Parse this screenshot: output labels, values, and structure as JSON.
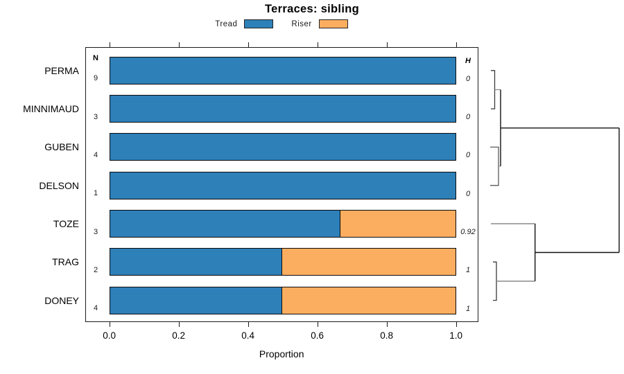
{
  "title": "Terraces: sibling",
  "legend": {
    "items": [
      {
        "label": "Tread",
        "color": "#2E80B9"
      },
      {
        "label": "Riser",
        "color": "#FBAD60"
      }
    ]
  },
  "columns": {
    "n_header": "N",
    "h_header": "H"
  },
  "axis": {
    "label": "Proportion",
    "ticks": [
      "0.0",
      "0.2",
      "0.4",
      "0.6",
      "0.8",
      "1.0"
    ]
  },
  "chart_data": {
    "type": "bar",
    "orientation": "horizontal-stacked",
    "title": "Terraces: sibling",
    "xlabel": "Proportion",
    "xlim": [
      0,
      1
    ],
    "xticks": [
      0.0,
      0.2,
      0.4,
      0.6,
      0.8,
      1.0
    ],
    "grid": false,
    "legend_position": "top",
    "categories": [
      "PERMA",
      "MINNIMAUD",
      "GUBEN",
      "DELSON",
      "TOZE",
      "TRAG",
      "DONEY"
    ],
    "series": [
      {
        "name": "Tread",
        "color": "#2E80B9",
        "values": [
          1,
          1,
          1,
          1,
          0.667,
          0.5,
          0.5
        ]
      },
      {
        "name": "Riser",
        "color": "#FBAD60",
        "values": [
          0,
          0,
          0,
          0,
          0.333,
          0.5,
          0.5
        ]
      }
    ],
    "n": [
      "9",
      "3",
      "4",
      "1",
      "3",
      "2",
      "4"
    ],
    "h": [
      "0",
      "0",
      "0",
      "0",
      "0.92",
      "1",
      "1"
    ]
  },
  "dendrogram": {
    "orientation": "heights-increase-rightward",
    "merges": [
      {
        "members": [
          "PERMA",
          "MINNIMAUD"
        ],
        "height": "near-zero"
      },
      {
        "members": [
          "GUBEN",
          "DELSON"
        ],
        "height": "near-zero"
      },
      {
        "members": [
          "PERMA+MINNIMAUD",
          "GUBEN+DELSON"
        ],
        "height": "low"
      },
      {
        "members": [
          "TRAG",
          "DONEY"
        ],
        "height": "near-zero"
      },
      {
        "members": [
          "TOZE",
          "TRAG+DONEY"
        ],
        "height": "middle"
      },
      {
        "members": [
          "upper-cluster",
          "lower-cluster"
        ],
        "height": "maximum"
      }
    ]
  }
}
